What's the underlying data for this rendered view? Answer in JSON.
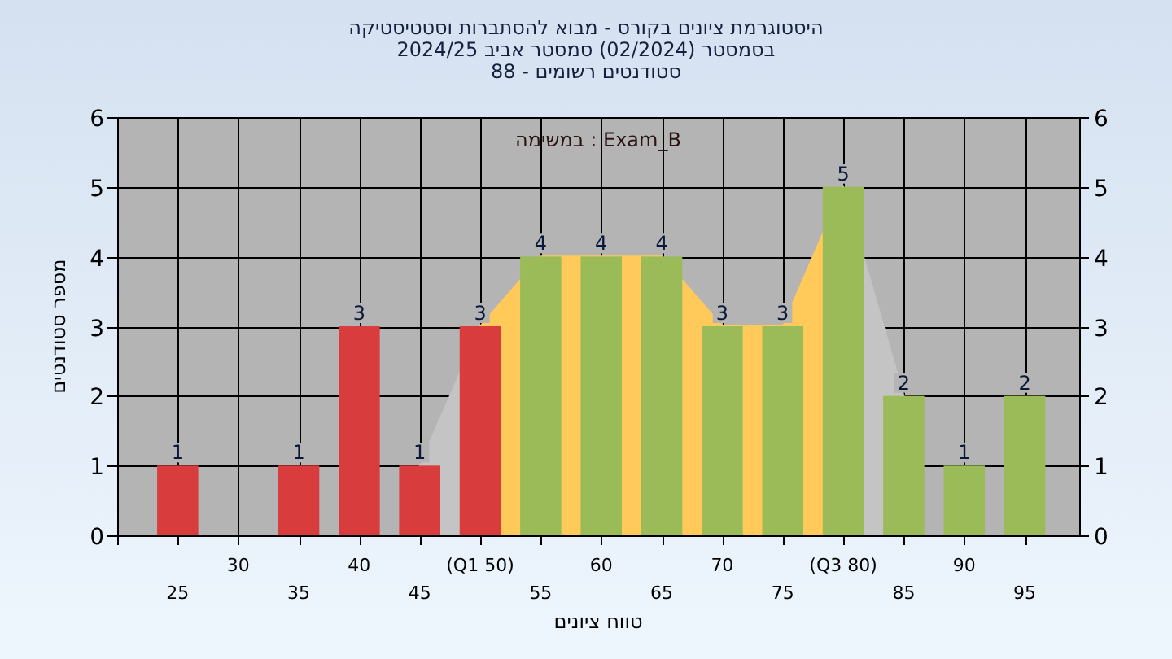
{
  "chart_data": {
    "type": "bar",
    "title": "היסטוגרמת ציונים בקורס - מבוא להסתברות וסטטיסטיקה",
    "subtitle": "בסמסטר (02/2024) סמסטר אביב 2024/25\nסטודנטים רשומים - 88",
    "xlabel": "טווח ציונים",
    "ylabel": "מספר סטודנטים",
    "annotations": [
      "במשימה : Exam_B"
    ],
    "categories": [
      "25",
      "30",
      "35",
      "40",
      "45",
      "(Q1 50)",
      "55",
      "60",
      "65",
      "70",
      "75",
      "(Q3 80)",
      "85",
      "90",
      "95"
    ],
    "series": [
      {
        "type": "area",
        "color": "#c4c4c4",
        "values": [
          null,
          null,
          null,
          null,
          1,
          3,
          null,
          null,
          null,
          null,
          null,
          null,
          null,
          null,
          null
        ]
      },
      {
        "type": "area",
        "color": "#c4c4c4",
        "values": [
          null,
          null,
          null,
          null,
          null,
          null,
          null,
          null,
          null,
          null,
          null,
          5,
          2,
          null,
          null
        ]
      },
      {
        "type": "area",
        "color": "#ffca5a",
        "values": [
          null,
          null,
          null,
          null,
          null,
          3,
          4,
          4,
          4,
          3,
          3,
          5,
          null,
          null,
          null
        ]
      },
      {
        "colors": [
          "#d83c3c",
          "#d83c3c",
          "#d83c3c",
          "#d83c3c",
          "#d83c3c",
          "#d83c3c",
          "#9bbb59",
          "#9bbb59",
          "#9bbb59",
          "#9bbb59",
          "#9bbb59",
          "#9bbb59",
          "#9bbb59",
          "#9bbb59",
          "#9bbb59"
        ],
        "values": [
          1,
          0,
          1,
          3,
          1,
          3,
          4,
          4,
          4,
          3,
          3,
          5,
          2,
          1,
          2
        ],
        "value_labels": [
          "1",
          null,
          "1",
          "3",
          "1",
          "3",
          "4",
          "4",
          "4",
          "3",
          "3",
          "5",
          "2",
          "1",
          "2"
        ]
      }
    ],
    "ylim": [
      0,
      6
    ],
    "yticks": [
      0,
      1,
      2,
      3,
      4,
      5,
      6
    ],
    "y2lim": [
      0,
      6
    ],
    "y2ticks": [
      0,
      1,
      2,
      3,
      4,
      5,
      6
    ],
    "grid": true
  }
}
